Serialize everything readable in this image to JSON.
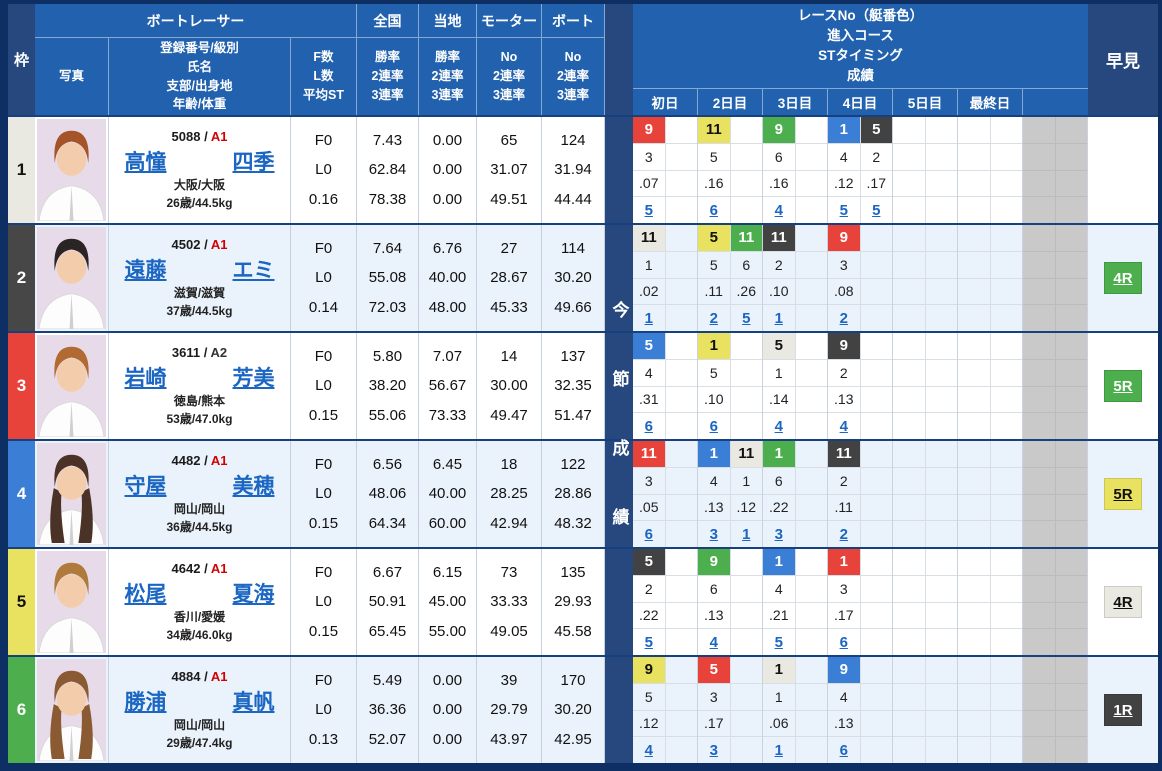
{
  "header": {
    "waku": "枠",
    "boat_racer": "ボートレーサー",
    "photo": "写真",
    "racer_info_lines": [
      "登録番号/級別",
      "氏名",
      "支部/出身地",
      "年齢/体重"
    ],
    "fl_lines": [
      "F数",
      "L数",
      "平均ST"
    ],
    "zenkoku": "全国",
    "touchi": "当地",
    "motor": "モーター",
    "boat": "ボート",
    "rate_lines": [
      "勝率",
      "2連率",
      "3連率"
    ],
    "no_lines": [
      "No",
      "2連率",
      "3連率"
    ],
    "right_title_lines": [
      "レースNo（艇番色）",
      "進入コース",
      "STタイミング",
      "成績"
    ],
    "days": [
      "初日",
      "2日目",
      "3日目",
      "4日目",
      "5日目",
      "最終日",
      ""
    ],
    "series_label": "今節成績",
    "hayami": "早見"
  },
  "colors": {
    "header_blue": "#2161ae",
    "dark_navy": "#27487e",
    "outer_border": "#0d2f63",
    "row_alt": "#eaf2fb",
    "link_blue": "#1a66c2",
    "class_a1_red": "#d40000",
    "disabled_gray": "#c9c9c9"
  },
  "boat_colors": {
    "1": {
      "bg": "#e9e9e1",
      "fg": "#111111"
    },
    "2": {
      "bg": "#424242",
      "fg": "#ffffff"
    },
    "3": {
      "bg": "#e8433a",
      "fg": "#ffffff"
    },
    "4": {
      "bg": "#3a7fd5",
      "fg": "#ffffff"
    },
    "5": {
      "bg": "#e9e261",
      "fg": "#111111"
    },
    "6": {
      "bg": "#4cae4c",
      "fg": "#ffffff"
    }
  },
  "racers": [
    {
      "frame": "1",
      "frame_bg": "#e9e9e1",
      "frame_fg": "#111111",
      "reg": "5088",
      "class": "A1",
      "class_color": "#d40000",
      "name_last": "高憧",
      "name_first": "四季",
      "branch": "大阪/大阪",
      "age_weight": "26歳/44.5kg",
      "fl": [
        "F0",
        "L0",
        "0.16"
      ],
      "zenkoku": [
        "7.43",
        "62.84",
        "78.38"
      ],
      "touchi": [
        "0.00",
        "0.00",
        "0.00"
      ],
      "motor": [
        "65",
        "31.07",
        "49.51"
      ],
      "boat": [
        "124",
        "31.94",
        "44.44"
      ],
      "photo": {
        "hair": "#a5542a",
        "long": false
      },
      "days": [
        [
          {
            "race": "9",
            "color": "3",
            "course": "3",
            "st": ".07",
            "result": "5"
          }
        ],
        [
          {
            "race": "11",
            "color": "5",
            "course": "5",
            "st": ".16",
            "result": "6"
          }
        ],
        [
          {
            "race": "9",
            "color": "6",
            "course": "6",
            "st": ".16",
            "result": "4"
          }
        ],
        [
          {
            "race": "1",
            "color": "4",
            "course": "4",
            "st": ".12",
            "result": "5"
          },
          {
            "race": "5",
            "color": "2",
            "course": "2",
            "st": ".17",
            "result": "5"
          }
        ],
        [],
        [],
        []
      ],
      "hayami": null
    },
    {
      "frame": "2",
      "frame_bg": "#474747",
      "frame_fg": "#ffffff",
      "reg": "4502",
      "class": "A1",
      "class_color": "#d40000",
      "name_last": "遠藤",
      "name_first": "エミ",
      "branch": "滋賀/滋賀",
      "age_weight": "37歳/44.5kg",
      "fl": [
        "F0",
        "L0",
        "0.14"
      ],
      "zenkoku": [
        "7.64",
        "55.08",
        "72.03"
      ],
      "touchi": [
        "6.76",
        "40.00",
        "48.00"
      ],
      "motor": [
        "27",
        "28.67",
        "45.33"
      ],
      "boat": [
        "114",
        "30.20",
        "49.66"
      ],
      "photo": {
        "hair": "#2a2424",
        "long": false
      },
      "days": [
        [
          {
            "race": "11",
            "color": "1",
            "course": "1",
            "st": ".02",
            "result": "1"
          }
        ],
        [
          {
            "race": "5",
            "color": "5",
            "course": "5",
            "st": ".11",
            "result": "2"
          },
          {
            "race": "11",
            "color": "6",
            "course": "6",
            "st": ".26",
            "result": "5"
          }
        ],
        [
          {
            "race": "11",
            "color": "2",
            "course": "2",
            "st": ".10",
            "result": "1"
          }
        ],
        [
          {
            "race": "9",
            "color": "3",
            "course": "3",
            "st": ".08",
            "result": "2"
          }
        ],
        [],
        [],
        []
      ],
      "hayami": {
        "label": "4R",
        "color": "6"
      }
    },
    {
      "frame": "3",
      "frame_bg": "#e8433a",
      "frame_fg": "#ffffff",
      "reg": "3611",
      "class": "A2",
      "class_color": "#333333",
      "name_last": "岩崎",
      "name_first": "芳美",
      "branch": "徳島/熊本",
      "age_weight": "53歳/47.0kg",
      "fl": [
        "F0",
        "L0",
        "0.15"
      ],
      "zenkoku": [
        "5.80",
        "38.20",
        "55.06"
      ],
      "touchi": [
        "7.07",
        "56.67",
        "73.33"
      ],
      "motor": [
        "14",
        "30.00",
        "49.47"
      ],
      "boat": [
        "137",
        "32.35",
        "51.47"
      ],
      "photo": {
        "hair": "#b06a32",
        "long": false
      },
      "days": [
        [
          {
            "race": "5",
            "color": "4",
            "course": "4",
            "st": ".31",
            "result": "6"
          }
        ],
        [
          {
            "race": "1",
            "color": "5",
            "course": "5",
            "st": ".10",
            "result": "6"
          }
        ],
        [
          {
            "race": "5",
            "color": "1",
            "course": "1",
            "st": ".14",
            "result": "4"
          }
        ],
        [
          {
            "race": "9",
            "color": "2",
            "course": "2",
            "st": ".13",
            "result": "4"
          }
        ],
        [],
        [],
        []
      ],
      "hayami": {
        "label": "5R",
        "color": "6"
      }
    },
    {
      "frame": "4",
      "frame_bg": "#3a7fd5",
      "frame_fg": "#ffffff",
      "reg": "4482",
      "class": "A1",
      "class_color": "#d40000",
      "name_last": "守屋",
      "name_first": "美穂",
      "branch": "岡山/岡山",
      "age_weight": "36歳/44.5kg",
      "fl": [
        "F0",
        "L0",
        "0.15"
      ],
      "zenkoku": [
        "6.56",
        "48.06",
        "64.34"
      ],
      "touchi": [
        "6.45",
        "40.00",
        "60.00"
      ],
      "motor": [
        "18",
        "28.25",
        "42.94"
      ],
      "boat": [
        "122",
        "28.86",
        "48.32"
      ],
      "photo": {
        "hair": "#4a3226",
        "long": true
      },
      "days": [
        [
          {
            "race": "11",
            "color": "3",
            "course": "3",
            "st": ".05",
            "result": "6"
          }
        ],
        [
          {
            "race": "1",
            "color": "4",
            "course": "4",
            "st": ".13",
            "result": "3"
          },
          {
            "race": "11",
            "color": "1",
            "course": "1",
            "st": ".12",
            "result": "1"
          }
        ],
        [
          {
            "race": "1",
            "color": "6",
            "course": "6",
            "st": ".22",
            "result": "3"
          }
        ],
        [
          {
            "race": "11",
            "color": "2",
            "course": "2",
            "st": ".11",
            "result": "2"
          }
        ],
        [],
        [],
        []
      ],
      "hayami": {
        "label": "5R",
        "color": "5"
      }
    },
    {
      "frame": "5",
      "frame_bg": "#e9e261",
      "frame_fg": "#111111",
      "reg": "4642",
      "class": "A1",
      "class_color": "#d40000",
      "name_last": "松尾",
      "name_first": "夏海",
      "branch": "香川/愛媛",
      "age_weight": "34歳/46.0kg",
      "fl": [
        "F0",
        "L0",
        "0.15"
      ],
      "zenkoku": [
        "6.67",
        "50.91",
        "65.45"
      ],
      "touchi": [
        "6.15",
        "45.00",
        "55.00"
      ],
      "motor": [
        "73",
        "33.33",
        "49.05"
      ],
      "boat": [
        "135",
        "29.93",
        "45.58"
      ],
      "photo": {
        "hair": "#b07a3a",
        "long": false
      },
      "days": [
        [
          {
            "race": "5",
            "color": "2",
            "course": "2",
            "st": ".22",
            "result": "5"
          }
        ],
        [
          {
            "race": "9",
            "color": "6",
            "course": "6",
            "st": ".13",
            "result": "4"
          }
        ],
        [
          {
            "race": "1",
            "color": "4",
            "course": "4",
            "st": ".21",
            "result": "5"
          }
        ],
        [
          {
            "race": "1",
            "color": "3",
            "course": "3",
            "st": ".17",
            "result": "6"
          }
        ],
        [],
        [],
        []
      ],
      "hayami": {
        "label": "4R",
        "color": "1"
      }
    },
    {
      "frame": "6",
      "frame_bg": "#4cae4c",
      "frame_fg": "#ffffff",
      "reg": "4884",
      "class": "A1",
      "class_color": "#d40000",
      "name_last": "勝浦",
      "name_first": "真帆",
      "branch": "岡山/岡山",
      "age_weight": "29歳/47.4kg",
      "fl": [
        "F0",
        "L0",
        "0.13"
      ],
      "zenkoku": [
        "5.49",
        "36.36",
        "52.07"
      ],
      "touchi": [
        "0.00",
        "0.00",
        "0.00"
      ],
      "motor": [
        "39",
        "29.79",
        "43.97"
      ],
      "boat": [
        "170",
        "30.20",
        "42.95"
      ],
      "photo": {
        "hair": "#8a5a32",
        "long": true
      },
      "days": [
        [
          {
            "race": "9",
            "color": "5",
            "course": "5",
            "st": ".12",
            "result": "4"
          }
        ],
        [
          {
            "race": "5",
            "color": "3",
            "course": "3",
            "st": ".17",
            "result": "3"
          }
        ],
        [
          {
            "race": "1",
            "color": "1",
            "course": "1",
            "st": ".06",
            "result": "1"
          }
        ],
        [
          {
            "race": "9",
            "color": "4",
            "course": "4",
            "st": ".13",
            "result": "6"
          }
        ],
        [],
        [],
        []
      ],
      "hayami": {
        "label": "1R",
        "color": "2"
      }
    }
  ]
}
